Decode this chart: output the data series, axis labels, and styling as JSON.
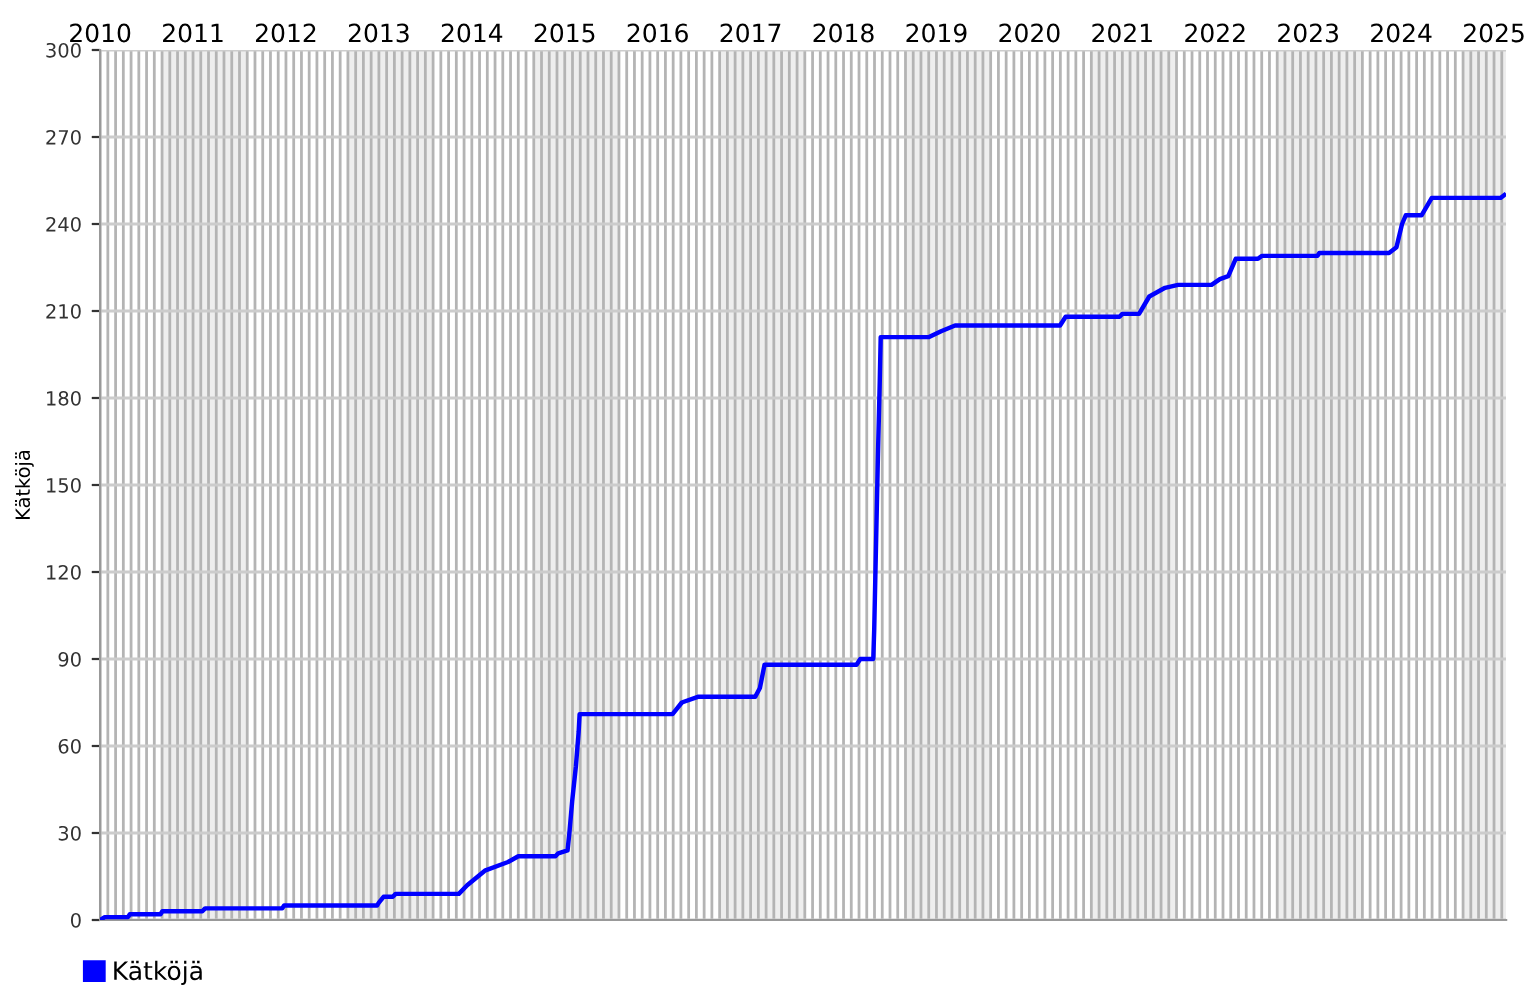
{
  "chart_data": {
    "type": "line",
    "ylabel": "Kätköjä",
    "series": [
      {
        "name": "Kätköjä",
        "color": "#0000ff",
        "x": [
          2010.0,
          2010.05,
          2010.3,
          2010.32,
          2010.65,
          2010.67,
          2011.1,
          2011.13,
          2011.96,
          2011.98,
          2012.98,
          2013.0,
          2013.05,
          2013.15,
          2013.18,
          2013.86,
          2013.95,
          2014.14,
          2014.39,
          2014.5,
          2014.9,
          2014.93,
          2015.03,
          2015.05,
          2015.08,
          2015.12,
          2015.15,
          2015.16,
          2016.16,
          2016.26,
          2016.44,
          2017.05,
          2017.1,
          2017.15,
          2018.14,
          2018.18,
          2018.32,
          2018.33,
          2018.35,
          2018.37,
          2018.39,
          2018.4,
          2018.92,
          2019.05,
          2019.2,
          2020.33,
          2020.39,
          2020.97,
          2021.0,
          2021.18,
          2021.29,
          2021.46,
          2021.6,
          2021.96,
          2022.05,
          2022.14,
          2022.22,
          2022.46,
          2022.5,
          2023.1,
          2023.12,
          2023.87,
          2023.95,
          2024.01,
          2024.05,
          2024.22,
          2024.33,
          2025.07,
          2025.11
        ],
        "values": [
          0,
          1,
          1,
          2,
          2,
          3,
          3,
          4,
          4,
          5,
          5,
          6,
          8,
          8,
          9,
          9,
          12,
          17,
          20,
          22,
          22,
          23,
          24,
          30,
          41,
          53,
          65,
          71,
          71,
          75,
          77,
          77,
          80,
          88,
          88,
          90,
          90,
          100,
          130,
          160,
          186,
          201,
          201,
          203,
          205,
          205,
          208,
          208,
          209,
          209,
          215,
          218,
          219,
          219,
          221,
          222,
          228,
          228,
          229,
          229,
          230,
          230,
          232,
          240,
          243,
          243,
          249,
          249,
          250
        ]
      }
    ],
    "xlim": [
      2010,
      2025.13
    ],
    "xticks": [
      2010,
      {
        "value": 2010.0833,
        "label": null
      },
      {
        "value": 2010.1667,
        "label": null
      },
      {
        "value": 2010.25,
        "label": null
      },
      {
        "value": 2010.3333,
        "label": null
      },
      {
        "value": 2010.4167,
        "label": null
      },
      {
        "value": 2010.5,
        "label": null
      },
      {
        "value": 2010.5833,
        "label": null
      },
      {
        "value": 2010.6667,
        "label": null
      },
      {
        "value": 2010.75,
        "label": null
      },
      {
        "value": 2010.8333,
        "label": null
      },
      {
        "value": 2010.9167,
        "label": null
      },
      2011,
      {
        "value": 2011.0833,
        "label": null
      },
      {
        "value": 2011.1667,
        "label": null
      },
      {
        "value": 2011.25,
        "label": null
      },
      {
        "value": 2011.3333,
        "label": null
      },
      {
        "value": 2011.4167,
        "label": null
      },
      {
        "value": 2011.5,
        "label": null
      },
      {
        "value": 2011.5833,
        "label": null
      },
      {
        "value": 2011.6667,
        "label": null
      },
      {
        "value": 2011.75,
        "label": null
      },
      {
        "value": 2011.8333,
        "label": null
      },
      {
        "value": 2011.9167,
        "label": null
      },
      2012,
      {
        "value": 2012.0833,
        "label": null
      },
      {
        "value": 2012.1667,
        "label": null
      },
      {
        "value": 2012.25,
        "label": null
      },
      {
        "value": 2012.3333,
        "label": null
      },
      {
        "value": 2012.4167,
        "label": null
      },
      {
        "value": 2012.5,
        "label": null
      },
      {
        "value": 2012.5833,
        "label": null
      },
      {
        "value": 2012.6667,
        "label": null
      },
      {
        "value": 2012.75,
        "label": null
      },
      {
        "value": 2012.8333,
        "label": null
      },
      {
        "value": 2012.9167,
        "label": null
      },
      2013,
      {
        "value": 2013.0833,
        "label": null
      },
      {
        "value": 2013.1667,
        "label": null
      },
      {
        "value": 2013.25,
        "label": null
      },
      {
        "value": 2013.3333,
        "label": null
      },
      {
        "value": 2013.4167,
        "label": null
      },
      {
        "value": 2013.5,
        "label": null
      },
      {
        "value": 2013.5833,
        "label": null
      },
      {
        "value": 2013.6667,
        "label": null
      },
      {
        "value": 2013.75,
        "label": null
      },
      {
        "value": 2013.8333,
        "label": null
      },
      {
        "value": 2013.9167,
        "label": null
      },
      2014,
      {
        "value": 2014.0833,
        "label": null
      },
      {
        "value": 2014.1667,
        "label": null
      },
      {
        "value": 2014.25,
        "label": null
      },
      {
        "value": 2014.3333,
        "label": null
      },
      {
        "value": 2014.4167,
        "label": null
      },
      {
        "value": 2014.5,
        "label": null
      },
      {
        "value": 2014.5833,
        "label": null
      },
      {
        "value": 2014.6667,
        "label": null
      },
      {
        "value": 2014.75,
        "label": null
      },
      {
        "value": 2014.8333,
        "label": null
      },
      {
        "value": 2014.9167,
        "label": null
      },
      2015,
      {
        "value": 2015.0833,
        "label": null
      },
      {
        "value": 2015.1667,
        "label": null
      },
      {
        "value": 2015.25,
        "label": null
      },
      {
        "value": 2015.3333,
        "label": null
      },
      {
        "value": 2015.4167,
        "label": null
      },
      {
        "value": 2015.5,
        "label": null
      },
      {
        "value": 2015.5833,
        "label": null
      },
      {
        "value": 2015.6667,
        "label": null
      },
      {
        "value": 2015.75,
        "label": null
      },
      {
        "value": 2015.8333,
        "label": null
      },
      {
        "value": 2015.9167,
        "label": null
      },
      2016,
      {
        "value": 2016.0833,
        "label": null
      },
      {
        "value": 2016.1667,
        "label": null
      },
      {
        "value": 2016.25,
        "label": null
      },
      {
        "value": 2016.3333,
        "label": null
      },
      {
        "value": 2016.4167,
        "label": null
      },
      {
        "value": 2016.5,
        "label": null
      },
      {
        "value": 2016.5833,
        "label": null
      },
      {
        "value": 2016.6667,
        "label": null
      },
      {
        "value": 2016.75,
        "label": null
      },
      {
        "value": 2016.8333,
        "label": null
      },
      {
        "value": 2016.9167,
        "label": null
      },
      2017,
      {
        "value": 2017.0833,
        "label": null
      },
      {
        "value": 2017.1667,
        "label": null
      },
      {
        "value": 2017.25,
        "label": null
      },
      {
        "value": 2017.3333,
        "label": null
      },
      {
        "value": 2017.4167,
        "label": null
      },
      {
        "value": 2017.5,
        "label": null
      },
      {
        "value": 2017.5833,
        "label": null
      },
      {
        "value": 2017.6667,
        "label": null
      },
      {
        "value": 2017.75,
        "label": null
      },
      {
        "value": 2017.8333,
        "label": null
      },
      {
        "value": 2017.9167,
        "label": null
      },
      2018,
      {
        "value": 2018.0833,
        "label": null
      },
      {
        "value": 2018.1667,
        "label": null
      },
      {
        "value": 2018.25,
        "label": null
      },
      {
        "value": 2018.3333,
        "label": null
      },
      {
        "value": 2018.4167,
        "label": null
      },
      {
        "value": 2018.5,
        "label": null
      },
      {
        "value": 2018.5833,
        "label": null
      },
      {
        "value": 2018.6667,
        "label": null
      },
      {
        "value": 2018.75,
        "label": null
      },
      {
        "value": 2018.8333,
        "label": null
      },
      {
        "value": 2018.9167,
        "label": null
      },
      2019,
      {
        "value": 2019.0833,
        "label": null
      },
      {
        "value": 2019.1667,
        "label": null
      },
      {
        "value": 2019.25,
        "label": null
      },
      {
        "value": 2019.3333,
        "label": null
      },
      {
        "value": 2019.4167,
        "label": null
      },
      {
        "value": 2019.5,
        "label": null
      },
      {
        "value": 2019.5833,
        "label": null
      },
      {
        "value": 2019.6667,
        "label": null
      },
      {
        "value": 2019.75,
        "label": null
      },
      {
        "value": 2019.8333,
        "label": null
      },
      {
        "value": 2019.9167,
        "label": null
      },
      2020,
      {
        "value": 2020.0833,
        "label": null
      },
      {
        "value": 2020.1667,
        "label": null
      },
      {
        "value": 2020.25,
        "label": null
      },
      {
        "value": 2020.3333,
        "label": null
      },
      {
        "value": 2020.4167,
        "label": null
      },
      {
        "value": 2020.5,
        "label": null
      },
      {
        "value": 2020.5833,
        "label": null
      },
      {
        "value": 2020.6667,
        "label": null
      },
      {
        "value": 2020.75,
        "label": null
      },
      {
        "value": 2020.8333,
        "label": null
      },
      {
        "value": 2020.9167,
        "label": null
      },
      2021,
      {
        "value": 2021.0833,
        "label": null
      },
      {
        "value": 2021.1667,
        "label": null
      },
      {
        "value": 2021.25,
        "label": null
      },
      {
        "value": 2021.3333,
        "label": null
      },
      {
        "value": 2021.4167,
        "label": null
      },
      {
        "value": 2021.5,
        "label": null
      },
      {
        "value": 2021.5833,
        "label": null
      },
      {
        "value": 2021.6667,
        "label": null
      },
      {
        "value": 2021.75,
        "label": null
      },
      {
        "value": 2021.8333,
        "label": null
      },
      {
        "value": 2021.9167,
        "label": null
      },
      2022,
      {
        "value": 2022.0833,
        "label": null
      },
      {
        "value": 2022.1667,
        "label": null
      },
      {
        "value": 2022.25,
        "label": null
      },
      {
        "value": 2022.3333,
        "label": null
      },
      {
        "value": 2022.4167,
        "label": null
      },
      {
        "value": 2022.5,
        "label": null
      },
      {
        "value": 2022.5833,
        "label": null
      },
      {
        "value": 2022.6667,
        "label": null
      },
      {
        "value": 2022.75,
        "label": null
      },
      {
        "value": 2022.8333,
        "label": null
      },
      {
        "value": 2022.9167,
        "label": null
      },
      2023,
      {
        "value": 2023.0833,
        "label": null
      },
      {
        "value": 2023.1667,
        "label": null
      },
      {
        "value": 2023.25,
        "label": null
      },
      {
        "value": 2023.3333,
        "label": null
      },
      {
        "value": 2023.4167,
        "label": null
      },
      {
        "value": 2023.5,
        "label": null
      },
      {
        "value": 2023.5833,
        "label": null
      },
      {
        "value": 2023.6667,
        "label": null
      },
      {
        "value": 2023.75,
        "label": null
      },
      {
        "value": 2023.8333,
        "label": null
      },
      {
        "value": 2023.9167,
        "label": null
      },
      2024,
      {
        "value": 2024.0833,
        "label": null
      },
      {
        "value": 2024.1667,
        "label": null
      },
      {
        "value": 2024.25,
        "label": null
      },
      {
        "value": 2024.3333,
        "label": null
      },
      {
        "value": 2024.4167,
        "label": null
      },
      {
        "value": 2024.5,
        "label": null
      },
      {
        "value": 2024.5833,
        "label": null
      },
      {
        "value": 2024.6667,
        "label": null
      },
      {
        "value": 2024.75,
        "label": null
      },
      {
        "value": 2024.8333,
        "label": null
      },
      {
        "value": 2024.9167,
        "label": null
      },
      2025,
      {
        "value": 2025.0833,
        "label": null
      }
    ],
    "ylim": [
      0,
      300
    ],
    "yticks": [
      0,
      30,
      60,
      90,
      120,
      150,
      180,
      210,
      240,
      270,
      300
    ],
    "bands": [
      {
        "axis": "x",
        "from": 2010.6667,
        "to": 2011.5833,
        "color": "#eeeeee"
      },
      {
        "axis": "x",
        "from": 2012.6667,
        "to": 2013.5833,
        "color": "#eeeeee"
      },
      {
        "axis": "x",
        "from": 2014.6667,
        "to": 2015.5833,
        "color": "#eeeeee"
      },
      {
        "axis": "x",
        "from": 2016.6667,
        "to": 2017.5833,
        "color": "#eeeeee"
      },
      {
        "axis": "x",
        "from": 2018.6667,
        "to": 2019.5833,
        "color": "#eeeeee"
      },
      {
        "axis": "x",
        "from": 2020.6667,
        "to": 2021.5833,
        "color": "#eeeeee"
      },
      {
        "axis": "x",
        "from": 2022.6667,
        "to": 2023.5833,
        "color": "#eeeeee"
      },
      {
        "axis": "x",
        "from": 2024.6667,
        "to": 2025.13,
        "color": "#eeeeee"
      }
    ],
    "grid": true,
    "legend": "bottom left",
    "line_style": "solid",
    "marker": "none"
  }
}
